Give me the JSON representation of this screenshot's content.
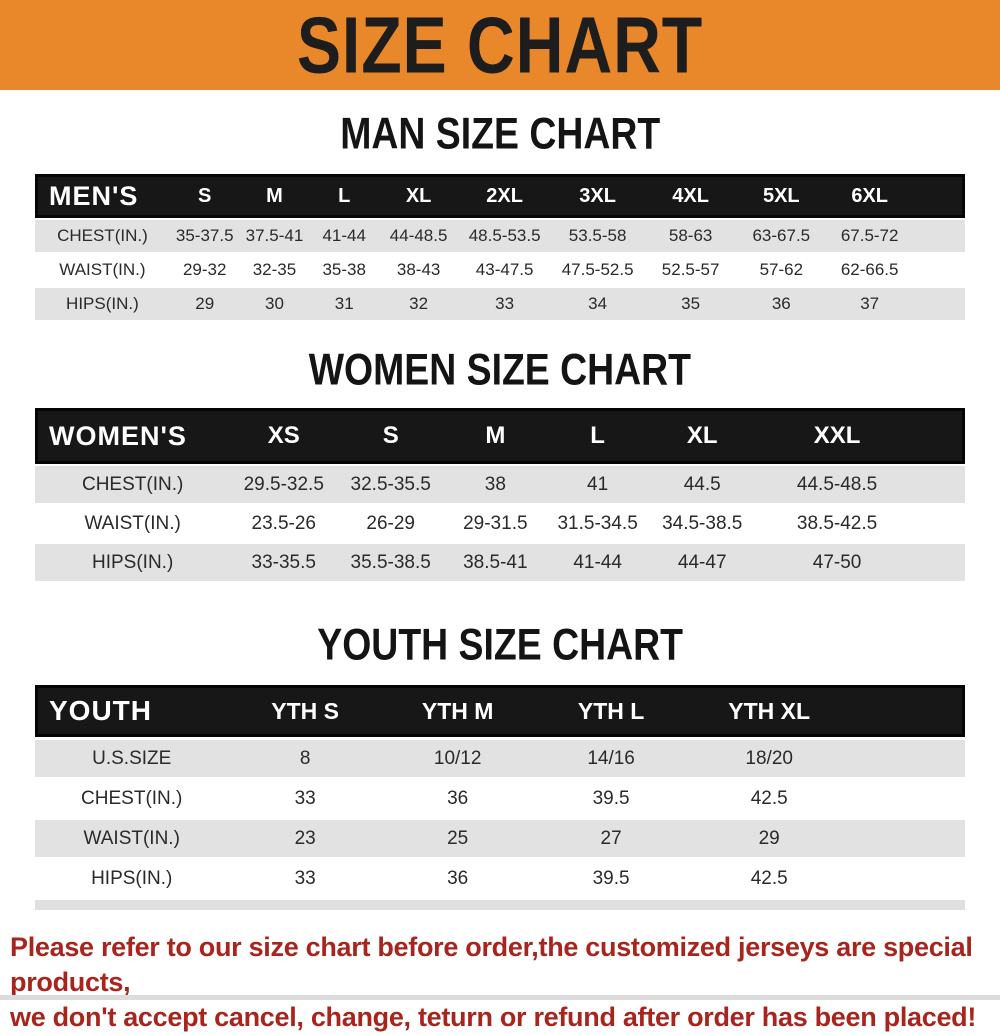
{
  "banner": {
    "title": "SIZE CHART"
  },
  "colors": {
    "banner_bg": "#E8882A",
    "table_header_bg": "#171717",
    "row_alt_bg": "#E2E2E2",
    "footer_text": "#A8251E"
  },
  "sections": [
    {
      "title": "MAN SIZE CHART",
      "group_label": "MEN'S",
      "columns": [
        "S",
        "M",
        "L",
        "XL",
        "2XL",
        "3XL",
        "4XL",
        "5XL",
        "6XL"
      ],
      "rows": [
        {
          "label": "CHEST(IN.)",
          "values": [
            "35-37.5",
            "37.5-41",
            "41-44",
            "44-48.5",
            "48.5-53.5",
            "53.5-58",
            "58-63",
            "63-67.5",
            "67.5-72"
          ]
        },
        {
          "label": "WAIST(IN.)",
          "values": [
            "29-32",
            "32-35",
            "35-38",
            "38-43",
            "43-47.5",
            "47.5-52.5",
            "52.5-57",
            "57-62",
            "62-66.5"
          ]
        },
        {
          "label": "HIPS(IN.)",
          "values": [
            "29",
            "30",
            "31",
            "32",
            "33",
            "34",
            "35",
            "36",
            "37"
          ]
        }
      ]
    },
    {
      "title": "WOMEN SIZE CHART",
      "group_label": "WOMEN'S",
      "columns": [
        "XS",
        "S",
        "M",
        "L",
        "XL",
        "XXL"
      ],
      "rows": [
        {
          "label": "CHEST(IN.)",
          "values": [
            "29.5-32.5",
            "32.5-35.5",
            "38",
            "41",
            "44.5",
            "44.5-48.5"
          ]
        },
        {
          "label": "WAIST(IN.)",
          "values": [
            "23.5-26",
            "26-29",
            "29-31.5",
            "31.5-34.5",
            "34.5-38.5",
            "38.5-42.5"
          ]
        },
        {
          "label": "HIPS(IN.)",
          "values": [
            "33-35.5",
            "35.5-38.5",
            "38.5-41",
            "41-44",
            "44-47",
            "47-50"
          ]
        }
      ]
    },
    {
      "title": "YOUTH SIZE CHART",
      "group_label": "YOUTH",
      "columns": [
        "YTH S",
        "YTH M",
        "YTH L",
        "YTH XL"
      ],
      "rows": [
        {
          "label": "U.S.SIZE",
          "values": [
            "8",
            "10/12",
            "14/16",
            "18/20"
          ]
        },
        {
          "label": "CHEST(IN.)",
          "values": [
            "33",
            "36",
            "39.5",
            "42.5"
          ]
        },
        {
          "label": "WAIST(IN.)",
          "values": [
            "23",
            "25",
            "27",
            "29"
          ]
        },
        {
          "label": "HIPS(IN.)",
          "values": [
            "33",
            "36",
            "39.5",
            "42.5"
          ]
        }
      ]
    }
  ],
  "footer": {
    "line1": "Please refer to our size chart before order,the customized jerseys are special products,",
    "line2": "we don't accept cancel, change, teturn or refund after order has been placed!"
  }
}
